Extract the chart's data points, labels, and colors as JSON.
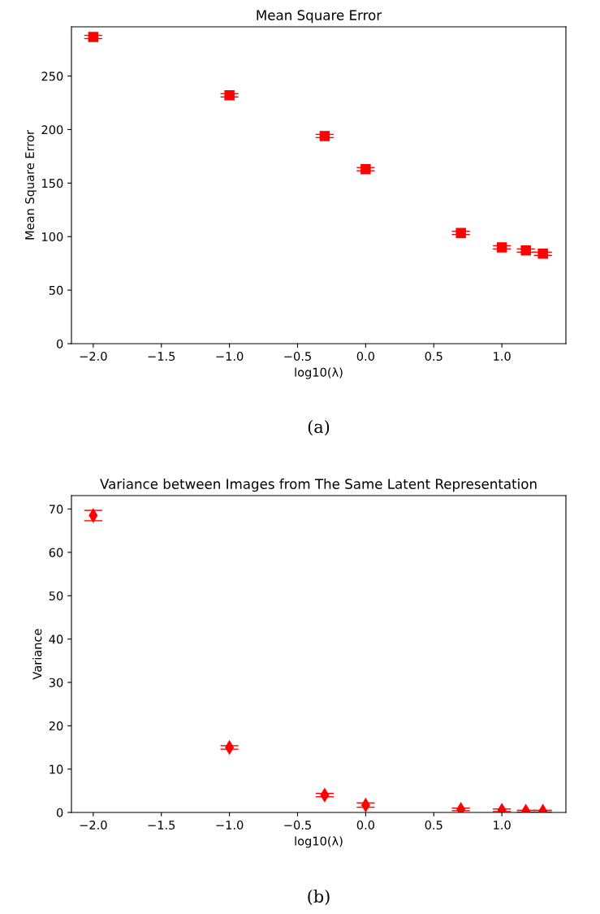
{
  "chart_data": [
    {
      "type": "scatter",
      "title": "Mean Square Error",
      "xlabel": "log10(λ)",
      "ylabel": "Mean Square Error",
      "annotations": [
        "(a)"
      ],
      "x": [
        -2,
        -1,
        -0.301,
        0,
        0.699,
        1,
        1.176,
        1.301
      ],
      "series": [
        {
          "color": "#ff0000",
          "values": [
            286.5,
            232,
            194,
            163,
            103.5,
            90,
            87,
            84
          ],
          "errors": [
            1.5,
            1.5,
            1.5,
            1.5,
            1.5,
            1.5,
            1.5,
            1.5
          ]
        }
      ],
      "marker": "square",
      "xlim": [
        -2.16,
        1.47
      ],
      "ylim": [
        0,
        296
      ],
      "xticks": [
        {
          "value": -2.0,
          "label": "−2.0"
        },
        {
          "value": -1.5,
          "label": "−1.5"
        },
        {
          "value": -1.0,
          "label": "−1.0"
        },
        {
          "value": -0.5,
          "label": "−0.5"
        },
        {
          "value": 0.0,
          "label": "0.0"
        },
        {
          "value": 0.5,
          "label": "0.5"
        },
        {
          "value": 1.0,
          "label": "1.0"
        }
      ],
      "yticks": [
        0,
        50,
        100,
        150,
        200,
        250
      ],
      "grid": false,
      "legend": false
    },
    {
      "type": "scatter",
      "title": "Variance between Images from The Same Latent Representation",
      "xlabel": "log10(λ)",
      "ylabel": "Variance",
      "annotations": [
        "(b)"
      ],
      "x": [
        -2,
        -1,
        -0.301,
        0,
        0.699,
        1,
        1.176,
        1.301
      ],
      "series": [
        {
          "color": "#ff0000",
          "values": [
            68.5,
            15.0,
            4.0,
            1.7,
            0.7,
            0.5,
            0.3,
            0.3
          ],
          "errors": [
            1.2,
            0.4,
            0.4,
            0.5,
            0.3,
            0.3,
            0.2,
            0.2
          ]
        }
      ],
      "marker": "diamond",
      "xlim": [
        -2.16,
        1.47
      ],
      "ylim": [
        0,
        73.1
      ],
      "xticks": [
        {
          "value": -2.0,
          "label": "−2.0"
        },
        {
          "value": -1.5,
          "label": "−1.5"
        },
        {
          "value": -1.0,
          "label": "−1.0"
        },
        {
          "value": -0.5,
          "label": "−0.5"
        },
        {
          "value": 0.0,
          "label": "0.0"
        },
        {
          "value": 0.5,
          "label": "0.5"
        },
        {
          "value": 1.0,
          "label": "1.0"
        }
      ],
      "yticks": [
        0,
        10,
        20,
        30,
        40,
        50,
        60,
        70
      ],
      "grid": false,
      "legend": false
    }
  ]
}
